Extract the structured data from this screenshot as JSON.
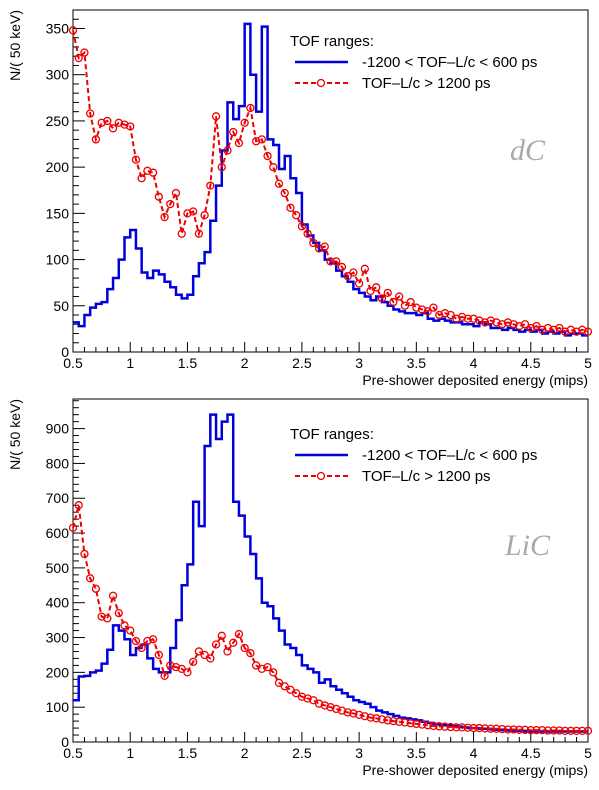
{
  "chart_data": [
    {
      "type": "line",
      "panel": "top",
      "xlabel": "Pre-shower deposited energy (mips)",
      "ylabel": "N/( 50 keV)",
      "xlim": [
        0.5,
        5
      ],
      "ylim": [
        0,
        370
      ],
      "xticks": [
        0.5,
        1,
        1.5,
        2,
        2.5,
        3,
        3.5,
        4,
        4.5,
        5
      ],
      "yticks": [
        0,
        50,
        100,
        150,
        200,
        250,
        300,
        350
      ],
      "tag": "dC",
      "legend": {
        "title": "TOF ranges:",
        "position": "top-right"
      },
      "series": [
        {
          "name": "-1200 < TOF–L/c < 600 ps",
          "style": "histogram",
          "color": "#0000dd",
          "bin_width": 0.05,
          "x": [
            0.5,
            0.55,
            0.6,
            0.65,
            0.7,
            0.75,
            0.8,
            0.85,
            0.9,
            0.95,
            1.0,
            1.05,
            1.1,
            1.15,
            1.2,
            1.25,
            1.3,
            1.35,
            1.4,
            1.45,
            1.5,
            1.55,
            1.6,
            1.65,
            1.7,
            1.75,
            1.8,
            1.85,
            1.9,
            1.95,
            2.0,
            2.05,
            2.1,
            2.15,
            2.2,
            2.25,
            2.3,
            2.35,
            2.4,
            2.45,
            2.5,
            2.55,
            2.6,
            2.65,
            2.7,
            2.75,
            2.8,
            2.85,
            2.9,
            2.95,
            3.0,
            3.05,
            3.1,
            3.15,
            3.2,
            3.25,
            3.3,
            3.35,
            3.4,
            3.45,
            3.5,
            3.55,
            3.6,
            3.65,
            3.7,
            3.75,
            3.8,
            3.85,
            3.9,
            3.95,
            4.0,
            4.05,
            4.1,
            4.15,
            4.2,
            4.25,
            4.3,
            4.35,
            4.4,
            4.45,
            4.5,
            4.55,
            4.6,
            4.65,
            4.7,
            4.75,
            4.8,
            4.85,
            4.9,
            4.95
          ],
          "y": [
            32,
            28,
            40,
            48,
            52,
            54,
            68,
            80,
            100,
            124,
            132,
            112,
            86,
            80,
            88,
            84,
            76,
            70,
            62,
            58,
            62,
            82,
            96,
            108,
            142,
            180,
            218,
            270,
            252,
            266,
            355,
            300,
            260,
            352,
            230,
            224,
            198,
            212,
            188,
            172,
            138,
            126,
            118,
            110,
            100,
            96,
            88,
            82,
            76,
            68,
            64,
            60,
            56,
            60,
            54,
            50,
            46,
            44,
            42,
            42,
            40,
            42,
            36,
            34,
            36,
            34,
            32,
            32,
            30,
            30,
            28,
            32,
            30,
            26,
            26,
            24,
            26,
            24,
            22,
            24,
            22,
            24,
            20,
            22,
            20,
            22,
            18,
            20,
            20,
            18
          ]
        },
        {
          "name": "TOF–L/c > 1200 ps",
          "style": "dashed-markers",
          "color": "#ee0000",
          "x": [
            0.5,
            0.55,
            0.6,
            0.65,
            0.7,
            0.75,
            0.8,
            0.85,
            0.9,
            0.95,
            1.0,
            1.05,
            1.1,
            1.15,
            1.2,
            1.25,
            1.3,
            1.35,
            1.4,
            1.45,
            1.5,
            1.55,
            1.6,
            1.65,
            1.7,
            1.75,
            1.8,
            1.85,
            1.9,
            1.95,
            2.0,
            2.05,
            2.1,
            2.15,
            2.2,
            2.25,
            2.3,
            2.35,
            2.4,
            2.45,
            2.5,
            2.55,
            2.6,
            2.65,
            2.7,
            2.75,
            2.8,
            2.85,
            2.9,
            2.95,
            3.0,
            3.05,
            3.1,
            3.15,
            3.2,
            3.25,
            3.3,
            3.35,
            3.4,
            3.45,
            3.5,
            3.55,
            3.6,
            3.65,
            3.7,
            3.75,
            3.8,
            3.85,
            3.9,
            3.95,
            4.0,
            4.05,
            4.1,
            4.15,
            4.2,
            4.25,
            4.3,
            4.35,
            4.4,
            4.45,
            4.5,
            4.55,
            4.6,
            4.65,
            4.7,
            4.75,
            4.8,
            4.85,
            4.9,
            4.95,
            5.0
          ],
          "y": [
            348,
            318,
            324,
            258,
            230,
            248,
            250,
            242,
            248,
            246,
            244,
            208,
            188,
            196,
            194,
            168,
            146,
            160,
            172,
            128,
            150,
            152,
            128,
            148,
            180,
            255,
            200,
            218,
            238,
            226,
            248,
            264,
            228,
            230,
            212,
            200,
            182,
            172,
            156,
            148,
            136,
            128,
            118,
            112,
            114,
            98,
            98,
            92,
            82,
            86,
            74,
            90,
            66,
            70,
            58,
            64,
            54,
            60,
            50,
            54,
            48,
            46,
            44,
            48,
            40,
            42,
            40,
            36,
            38,
            36,
            36,
            34,
            32,
            34,
            32,
            30,
            32,
            30,
            28,
            30,
            26,
            28,
            24,
            26,
            24,
            26,
            22,
            24,
            22,
            24,
            22
          ]
        }
      ]
    },
    {
      "type": "line",
      "panel": "bottom",
      "xlabel": "Pre-shower deposited energy (mips)",
      "ylabel": "N/( 50 keV)",
      "xlim": [
        0.5,
        5
      ],
      "ylim": [
        0,
        985
      ],
      "xticks": [
        0.5,
        1,
        1.5,
        2,
        2.5,
        3,
        3.5,
        4,
        4.5,
        5
      ],
      "yticks": [
        0,
        100,
        200,
        300,
        400,
        500,
        600,
        700,
        800,
        900
      ],
      "tag": "LiC",
      "legend": {
        "title": "TOF ranges:",
        "position": "top-right"
      },
      "series": [
        {
          "name": "-1200 < TOF–L/c < 600 ps",
          "style": "histogram",
          "color": "#0000dd",
          "bin_width": 0.05,
          "x": [
            0.5,
            0.55,
            0.6,
            0.65,
            0.7,
            0.75,
            0.8,
            0.85,
            0.9,
            0.95,
            1.0,
            1.05,
            1.1,
            1.15,
            1.2,
            1.25,
            1.3,
            1.35,
            1.4,
            1.45,
            1.5,
            1.55,
            1.6,
            1.65,
            1.7,
            1.75,
            1.8,
            1.85,
            1.9,
            1.95,
            2.0,
            2.05,
            2.1,
            2.15,
            2.2,
            2.25,
            2.3,
            2.35,
            2.4,
            2.45,
            2.5,
            2.55,
            2.6,
            2.65,
            2.7,
            2.75,
            2.8,
            2.85,
            2.9,
            2.95,
            3.0,
            3.05,
            3.1,
            3.15,
            3.2,
            3.25,
            3.3,
            3.35,
            3.4,
            3.45,
            3.5,
            3.55,
            3.6,
            3.65,
            3.7,
            3.75,
            3.8,
            3.85,
            3.9,
            3.95,
            4.0,
            4.05,
            4.1,
            4.15,
            4.2,
            4.25,
            4.3,
            4.35,
            4.4,
            4.45,
            4.5,
            4.55,
            4.6,
            4.65,
            4.7,
            4.75,
            4.8,
            4.85,
            4.9,
            4.95
          ],
          "y": [
            120,
            188,
            190,
            200,
            205,
            225,
            265,
            335,
            320,
            295,
            250,
            270,
            280,
            240,
            210,
            200,
            200,
            270,
            350,
            450,
            510,
            690,
            620,
            850,
            940,
            870,
            920,
            940,
            690,
            650,
            590,
            540,
            470,
            400,
            390,
            355,
            320,
            280,
            270,
            250,
            220,
            210,
            200,
            170,
            180,
            160,
            150,
            140,
            130,
            120,
            115,
            110,
            100,
            90,
            85,
            80,
            75,
            70,
            68,
            65,
            62,
            58,
            55,
            52,
            50,
            48,
            46,
            44,
            42,
            40,
            40,
            38,
            38,
            36,
            35,
            34,
            33,
            32,
            32,
            31,
            30,
            30,
            30,
            30,
            30,
            30,
            30,
            30,
            30,
            30
          ]
        },
        {
          "name": "TOF–L/c > 1200 ps",
          "style": "dashed-markers",
          "color": "#ee0000",
          "x": [
            0.5,
            0.55,
            0.6,
            0.65,
            0.7,
            0.75,
            0.8,
            0.85,
            0.9,
            0.95,
            1.0,
            1.05,
            1.1,
            1.15,
            1.2,
            1.25,
            1.3,
            1.35,
            1.4,
            1.45,
            1.5,
            1.55,
            1.6,
            1.65,
            1.7,
            1.75,
            1.8,
            1.85,
            1.9,
            1.95,
            2.0,
            2.05,
            2.1,
            2.15,
            2.2,
            2.25,
            2.3,
            2.35,
            2.4,
            2.45,
            2.5,
            2.55,
            2.6,
            2.65,
            2.7,
            2.75,
            2.8,
            2.85,
            2.9,
            2.95,
            3.0,
            3.05,
            3.1,
            3.15,
            3.2,
            3.25,
            3.3,
            3.35,
            3.4,
            3.45,
            3.5,
            3.55,
            3.6,
            3.65,
            3.7,
            3.75,
            3.8,
            3.85,
            3.9,
            3.95,
            4.0,
            4.05,
            4.1,
            4.15,
            4.2,
            4.25,
            4.3,
            4.35,
            4.4,
            4.45,
            4.5,
            4.55,
            4.6,
            4.65,
            4.7,
            4.75,
            4.8,
            4.85,
            4.9,
            4.95,
            5.0
          ],
          "y": [
            615,
            680,
            540,
            470,
            440,
            360,
            355,
            420,
            370,
            335,
            320,
            290,
            270,
            290,
            295,
            250,
            190,
            220,
            215,
            210,
            200,
            230,
            260,
            250,
            240,
            280,
            305,
            260,
            285,
            310,
            270,
            255,
            220,
            210,
            215,
            200,
            170,
            160,
            150,
            140,
            130,
            125,
            120,
            110,
            105,
            100,
            95,
            90,
            85,
            82,
            78,
            74,
            70,
            68,
            65,
            62,
            60,
            58,
            56,
            54,
            52,
            50,
            48,
            46,
            45,
            44,
            43,
            42,
            42,
            41,
            40,
            40,
            39,
            38,
            38,
            37,
            36,
            36,
            35,
            35,
            34,
            34,
            34,
            33,
            33,
            33,
            32,
            32,
            32,
            32,
            32
          ]
        }
      ]
    }
  ]
}
